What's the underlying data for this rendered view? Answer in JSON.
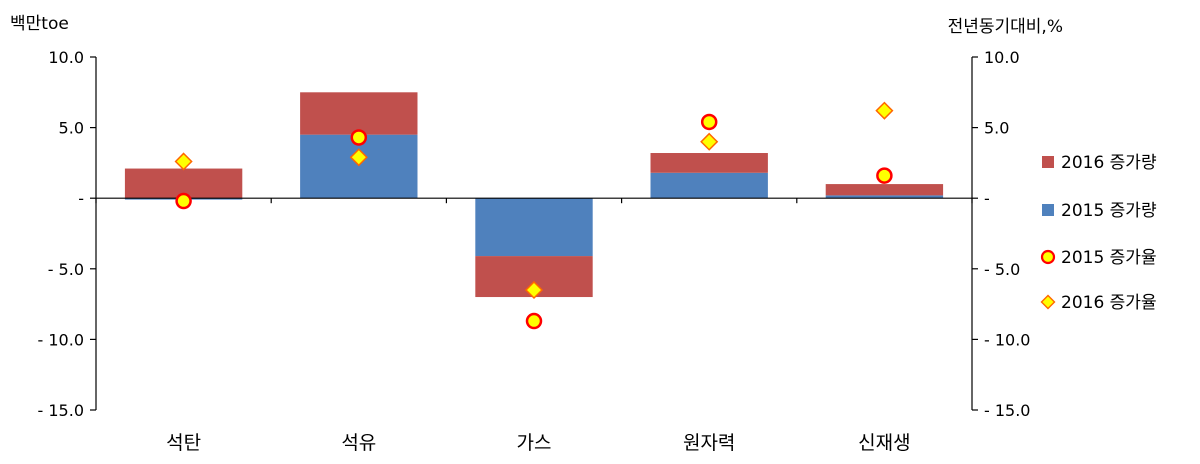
{
  "chart_data": {
    "type": "bar",
    "y_left_unit": "백만toe",
    "y_right_unit": "전년동기대비,%",
    "ylim": [
      -15,
      10
    ],
    "y_ticks": [
      10,
      5,
      0,
      -5,
      -10,
      -15
    ],
    "y_tick_labels": [
      "10.0",
      "5.0",
      "-",
      "- 5.0",
      "- 10.0",
      "- 15.0"
    ],
    "categories": [
      "석탄",
      "석유",
      "가스",
      "원자력",
      "신재생"
    ],
    "bar_series": [
      {
        "name": "2015 증가량",
        "color": "#4f81bd",
        "values": [
          -0.1,
          4.5,
          -4.1,
          1.8,
          0.2
        ]
      },
      {
        "name": "2016 증가량",
        "color": "#c0504d",
        "values": [
          2.1,
          3.0,
          -2.9,
          1.4,
          0.8
        ]
      }
    ],
    "point_series": [
      {
        "name": "2015 증가율",
        "marker": "circle",
        "fill": "#ffff00",
        "stroke": "#ff0000",
        "values": [
          -0.2,
          4.3,
          -8.7,
          5.4,
          1.6
        ]
      },
      {
        "name": "2016 증가율",
        "marker": "diamond",
        "fill": "#ffff00",
        "stroke": "#ff6600",
        "values": [
          2.6,
          2.9,
          -6.5,
          4.0,
          6.2
        ]
      }
    ],
    "legend": [
      {
        "label": "2016 증가량",
        "marker": "square",
        "color": "#c0504d"
      },
      {
        "label": "2015 증가량",
        "marker": "square",
        "color": "#4f81bd"
      },
      {
        "label": "2015 증가율",
        "marker": "circle",
        "color": "#ffff00",
        "stroke": "#ff0000"
      },
      {
        "label": "2016 증가율",
        "marker": "diamond",
        "color": "#ffff00",
        "stroke": "#ff6600"
      }
    ],
    "legend_position": "right"
  }
}
